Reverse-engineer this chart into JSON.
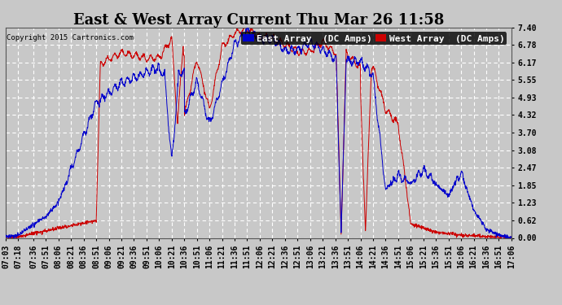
{
  "title": "East & West Array Current Thu Mar 26 11:58",
  "copyright": "Copyright 2015 Cartronics.com",
  "yticks": [
    0.0,
    0.62,
    1.23,
    1.85,
    2.47,
    3.08,
    3.7,
    4.32,
    4.93,
    5.55,
    6.17,
    6.78,
    7.4
  ],
  "ymin": 0.0,
  "ymax": 7.4,
  "bg_color": "#c8c8c8",
  "plot_bg_color": "#c8c8c8",
  "grid_color": "#ffffff",
  "east_color": "#0000cc",
  "west_color": "#cc0000",
  "east_label": "East Array  (DC Amps)",
  "west_label": "West Array  (DC Amps)",
  "xtick_labels": [
    "07:03",
    "07:18",
    "07:36",
    "07:51",
    "08:06",
    "08:21",
    "08:36",
    "08:51",
    "09:06",
    "09:21",
    "09:36",
    "09:51",
    "10:06",
    "10:21",
    "10:36",
    "10:51",
    "11:06",
    "11:21",
    "11:36",
    "11:51",
    "12:06",
    "12:21",
    "12:36",
    "12:51",
    "13:06",
    "13:21",
    "13:36",
    "13:51",
    "14:06",
    "14:21",
    "14:36",
    "14:51",
    "15:06",
    "15:21",
    "15:36",
    "15:51",
    "16:06",
    "16:21",
    "16:36",
    "16:51",
    "17:06"
  ],
  "title_fontsize": 13,
  "tick_fontsize": 7,
  "legend_fontsize": 8
}
